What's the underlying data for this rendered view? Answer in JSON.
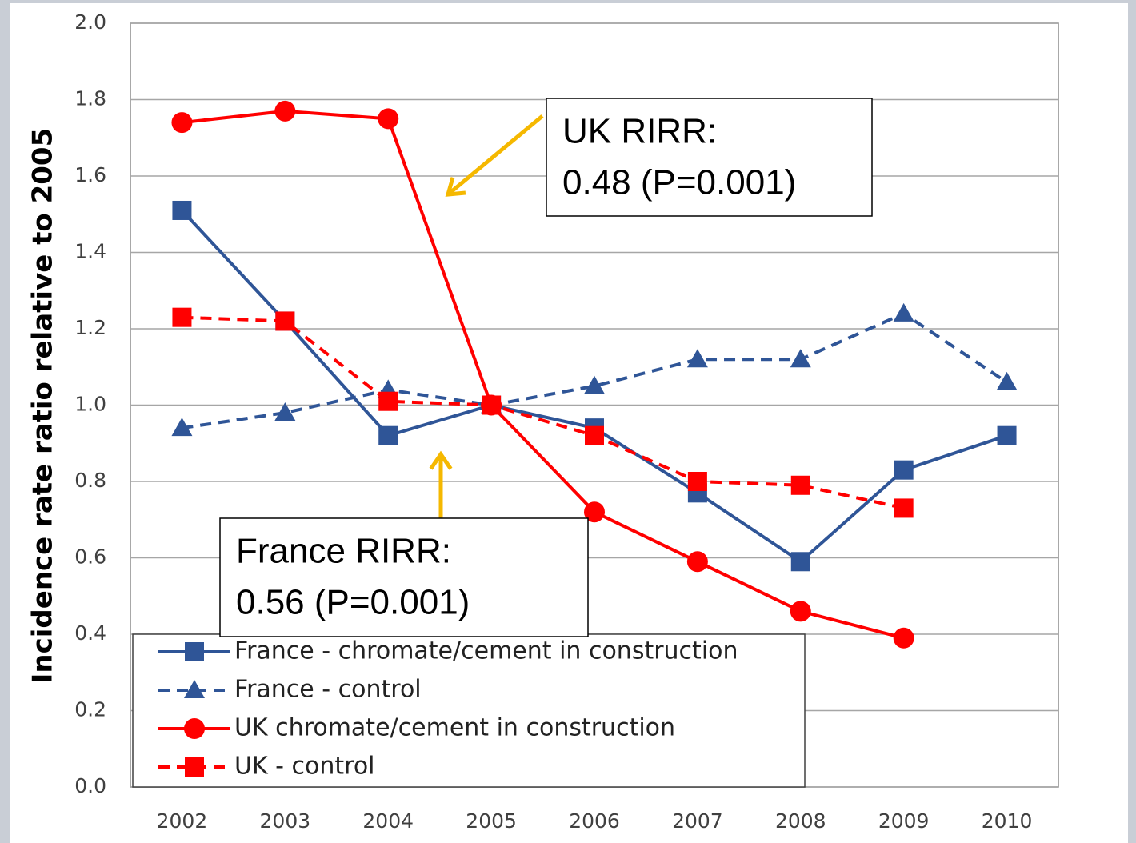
{
  "chart_data": {
    "type": "line",
    "y_label": "Incidence rate ratio relative to 2005",
    "categories": [
      "2002",
      "2003",
      "2004",
      "2005",
      "2006",
      "2007",
      "2008",
      "2009",
      "2010"
    ],
    "ylim": [
      0,
      2
    ],
    "yticks": [
      {
        "value": 0,
        "label": "0.0"
      },
      0.2,
      0.4,
      0.6,
      0.8,
      {
        "value": 1,
        "label": "1.0"
      },
      1.2,
      1.4,
      1.6,
      1.8,
      {
        "value": 2,
        "label": "2.0"
      }
    ],
    "grid": true,
    "legend": "lower left",
    "series": [
      {
        "name": "France - chromate/cement in construction",
        "color": "#2f5597",
        "marker": "square",
        "dashed": false,
        "values": [
          1.51,
          1.22,
          0.92,
          1.0,
          0.94,
          0.77,
          0.59,
          0.83,
          0.92
        ]
      },
      {
        "name": "France - control",
        "color": "#2f5597",
        "marker": "triangle",
        "dashed": true,
        "values": [
          0.94,
          0.98,
          1.04,
          1.0,
          1.05,
          1.12,
          1.12,
          1.24,
          1.06
        ]
      },
      {
        "name": "UK chromate/cement in construction",
        "color": "#ff0000",
        "marker": "circle",
        "dashed": false,
        "values": [
          1.74,
          1.77,
          1.75,
          1.0,
          0.72,
          0.59,
          0.46,
          0.39,
          null
        ]
      },
      {
        "name": "UK - control",
        "color": "#ff0000",
        "marker": "square",
        "dashed": true,
        "values": [
          1.23,
          1.22,
          1.01,
          1.0,
          0.92,
          0.8,
          0.79,
          0.73,
          null
        ]
      }
    ],
    "annotations": [
      {
        "lines": [
          "UK RIRR:",
          "0.48 (P=0.001)"
        ]
      },
      {
        "lines": [
          "France RIRR:",
          "0.56 (P=0.001)"
        ]
      }
    ]
  }
}
